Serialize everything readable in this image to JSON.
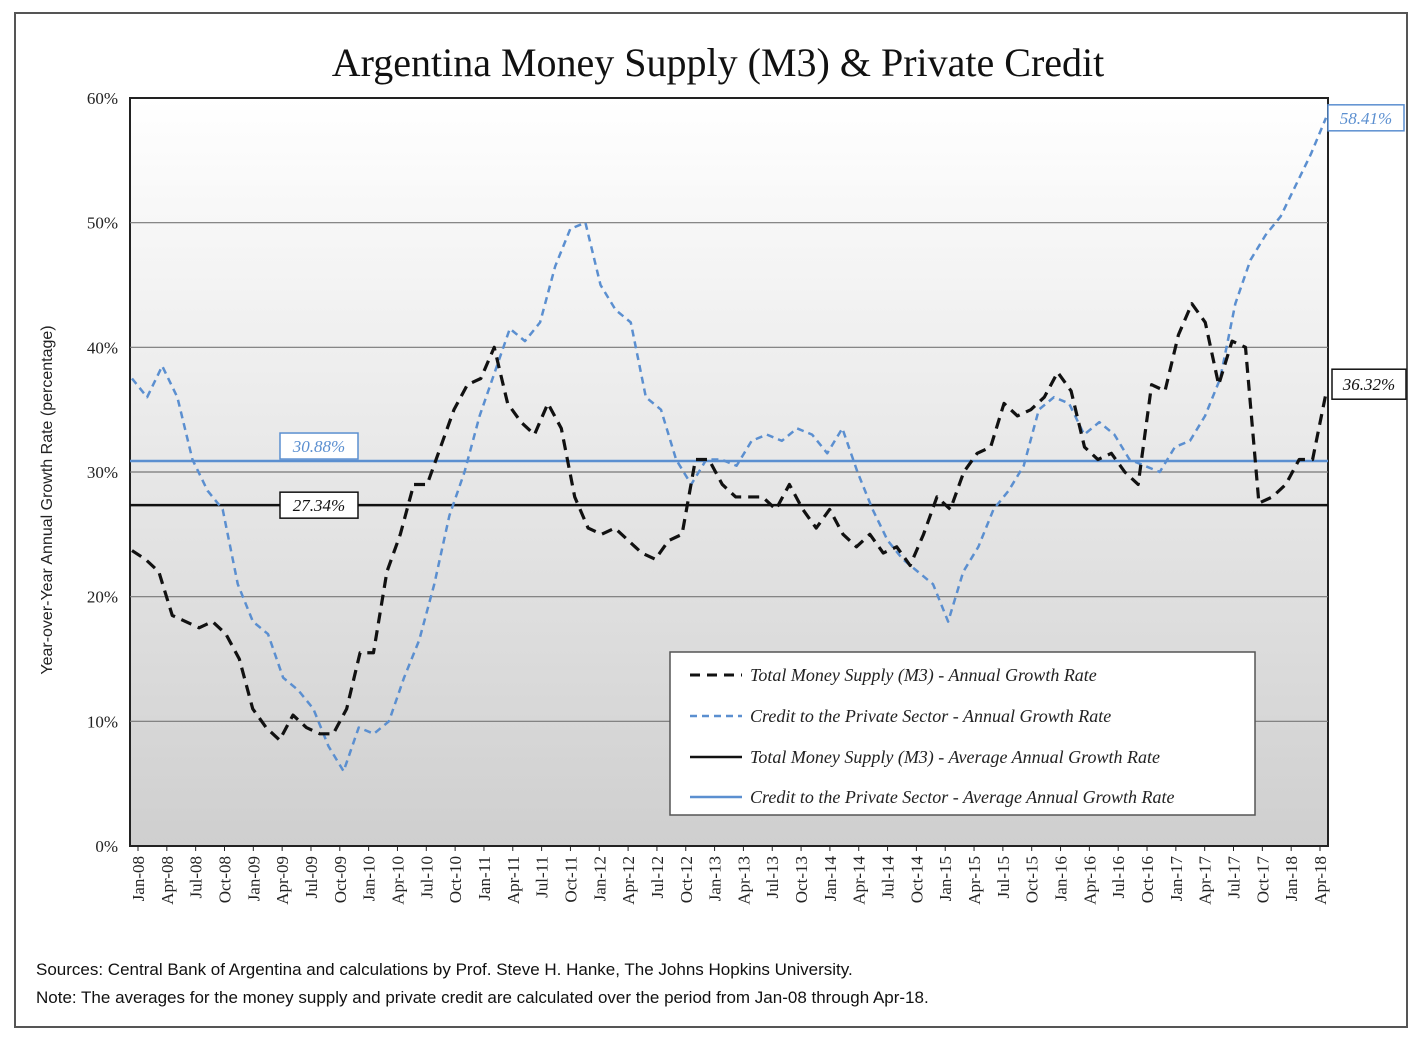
{
  "chart_data": {
    "type": "line",
    "title": "Argentina Money Supply (M3) & Private Credit",
    "ylabel": "Year-over-Year Annual Growth Rate (percentage)",
    "xlabel": "",
    "ylim": [
      0,
      60
    ],
    "y_ticks": [
      "0%",
      "10%",
      "20%",
      "30%",
      "40%",
      "50%",
      "60%"
    ],
    "x_tick_labels": [
      "Jan-08",
      "Apr-08",
      "Jul-08",
      "Oct-08",
      "Jan-09",
      "Apr-09",
      "Jul-09",
      "Oct-09",
      "Jan-10",
      "Apr-10",
      "Jul-10",
      "Oct-10",
      "Jan-11",
      "Apr-11",
      "Jul-11",
      "Oct-11",
      "Jan-12",
      "Apr-12",
      "Jul-12",
      "Oct-12",
      "Jan-13",
      "Apr-13",
      "Jul-13",
      "Oct-13",
      "Jan-14",
      "Apr-14",
      "Jul-14",
      "Oct-14",
      "Jan-15",
      "Apr-15",
      "Jul-15",
      "Oct-15",
      "Jan-16",
      "Apr-16",
      "Jul-16",
      "Oct-16",
      "Jan-17",
      "Apr-17",
      "Jul-17",
      "Oct-17",
      "Jan-18",
      "Apr-18"
    ],
    "grid": "horizontal",
    "legend_position": "bottom-right",
    "series": [
      {
        "name": "Total Money Supply (M3) - Annual Growth Rate",
        "style": "dashed",
        "color": "#111111",
        "values": [
          23.7,
          23,
          22,
          18.5,
          18,
          17.5,
          18,
          17,
          15,
          11,
          9.5,
          8.5,
          10.5,
          9.5,
          9,
          9,
          11,
          15.5,
          15.5,
          22,
          25,
          29,
          29,
          32,
          35,
          37,
          37.5,
          40,
          35.5,
          34,
          33,
          35.5,
          33.5,
          28,
          25.5,
          25,
          25.5,
          24.5,
          23.5,
          23,
          24.5,
          25,
          31,
          31,
          29,
          28,
          28,
          28,
          27,
          29,
          27,
          25.5,
          27,
          25,
          24,
          25,
          23.5,
          24,
          22.5,
          25,
          28,
          27,
          30,
          31.5,
          32,
          35.5,
          34.5,
          35,
          36,
          38,
          36.5,
          32,
          31,
          31.5,
          30,
          29,
          37,
          36.5,
          41,
          43.5,
          42,
          37,
          40.5,
          40,
          27.5,
          28,
          29,
          31,
          31,
          36.32
        ]
      },
      {
        "name": "Credit to the Private Sector - Annual Growth Rate",
        "style": "dashed",
        "color": "#5b8fd0",
        "values": [
          37.5,
          36,
          38.5,
          36,
          31,
          28.5,
          27,
          21,
          18,
          17,
          13.5,
          12.5,
          11,
          8,
          6,
          9.5,
          9,
          10,
          13.5,
          16.5,
          21,
          26.5,
          30,
          34.5,
          38,
          41.5,
          40.5,
          42,
          46.5,
          49.5,
          50,
          45,
          43,
          42,
          36,
          35,
          31,
          29,
          31,
          31,
          30.5,
          32.5,
          33,
          32.5,
          33.5,
          33,
          31.5,
          33.5,
          30,
          27,
          24.5,
          23,
          22,
          21,
          18,
          22,
          24,
          27,
          28.5,
          30.5,
          35,
          36,
          35.5,
          33,
          34,
          33,
          31,
          30.5,
          30,
          32,
          32.5,
          34.5,
          37.5,
          43.5,
          47,
          49,
          50.5,
          53,
          55.5,
          58.41
        ]
      },
      {
        "name": "Total Money Supply (M3) - Average Annual Growth Rate",
        "style": "solid",
        "color": "#111111",
        "average": 27.34
      },
      {
        "name": "Credit to the Private Sector - Average Annual Growth Rate",
        "style": "solid",
        "color": "#5b8fd0",
        "average": 30.88
      }
    ],
    "annotations": {
      "m3_average_label": "27.34%",
      "credit_average_label": "30.88%",
      "m3_last_label": "36.32%",
      "credit_last_label": "58.41%"
    }
  },
  "footer": {
    "sources": "Sources: Central Bank of Argentina and calculations by Prof. Steve H. Hanke, The Johns Hopkins University.",
    "note": "Note: The averages for the money supply and private credit are calculated over the period from Jan-08 through Apr-18."
  }
}
